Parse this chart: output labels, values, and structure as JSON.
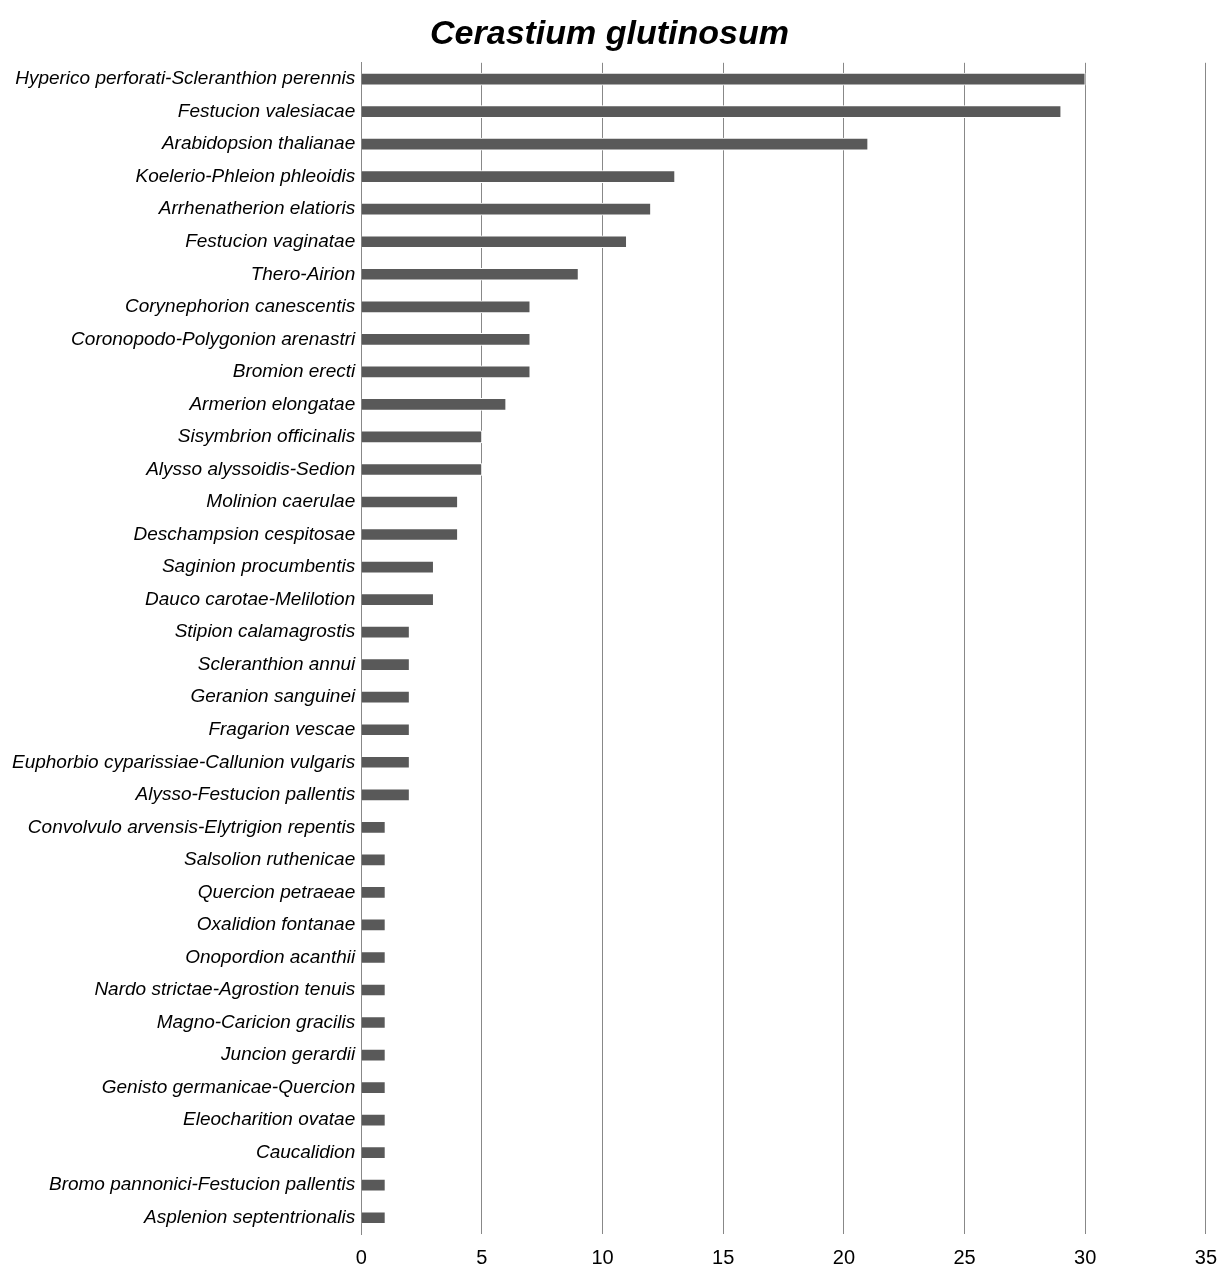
{
  "chart_data": {
    "type": "bar",
    "orientation": "horizontal",
    "title": "Cerastium glutinosum",
    "categories": [
      "Hyperico perforati-Scleranthion perennis",
      "Festucion valesiacae",
      "Arabidopsion thalianae",
      "Koelerio-Phleion phleoidis",
      "Arrhenatherion elatioris",
      "Festucion vaginatae",
      "Thero-Airion",
      "Corynephorion canescentis",
      "Coronopodo-Polygonion arenastri",
      "Bromion erecti",
      "Armerion elongatae",
      "Sisymbrion officinalis",
      "Alysso alyssoidis-Sedion",
      "Molinion caerulae",
      "Deschampsion cespitosae",
      "Saginion procumbentis",
      "Dauco carotae-Melilotion",
      "Stipion calamagrostis",
      "Scleranthion annui",
      "Geranion sanguinei",
      "Fragarion vescae",
      "Euphorbio cyparissiae-Callunion vulgaris",
      "Alysso-Festucion pallentis",
      "Convolvulo arvensis-Elytrigion repentis",
      "Salsolion ruthenicae",
      "Quercion petraeae",
      "Oxalidion fontanae",
      "Onopordion acanthii",
      "Nardo strictae-Agrostion tenuis",
      "Magno-Caricion gracilis",
      "Juncion gerardii",
      "Genisto germanicae-Quercion",
      "Eleocharition ovatae",
      "Caucalidion",
      "Bromo pannonici-Festucion pallentis",
      "Asplenion septentrionalis"
    ],
    "values": [
      30,
      29,
      21,
      13,
      12,
      11,
      9,
      7,
      7,
      7,
      6,
      5,
      5,
      4,
      4,
      3,
      3,
      2,
      2,
      2,
      2,
      2,
      2,
      1,
      1,
      1,
      1,
      1,
      1,
      1,
      1,
      1,
      1,
      1,
      1,
      1
    ],
    "color": "#595959",
    "xlim": [
      0,
      35
    ],
    "xticks": [
      0,
      5,
      10,
      15,
      20,
      25,
      30,
      35
    ],
    "grid": "x"
  }
}
